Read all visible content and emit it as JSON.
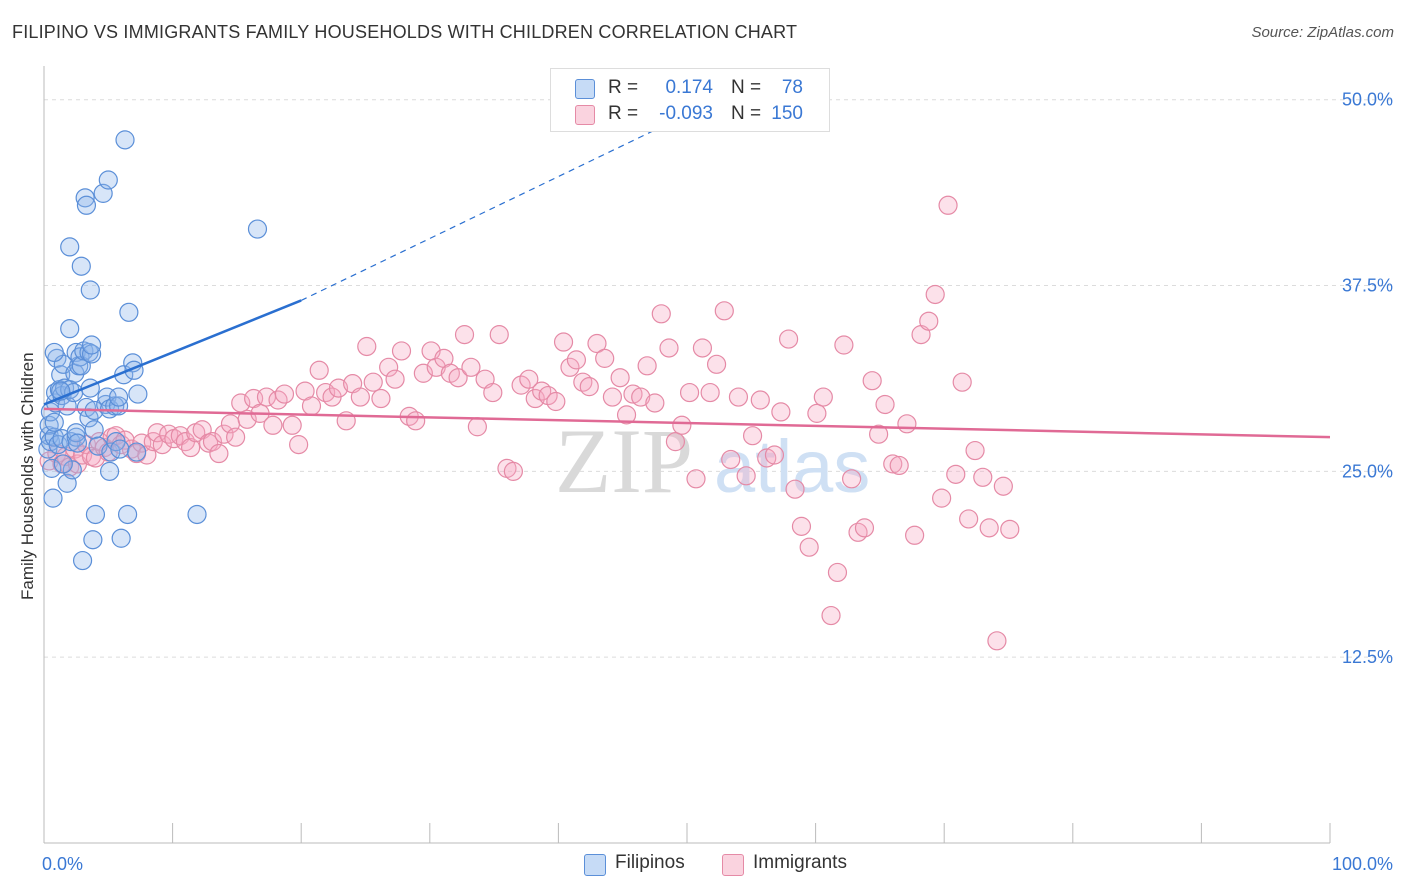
{
  "header": {
    "title": "FILIPINO VS IMMIGRANTS FAMILY HOUSEHOLDS WITH CHILDREN CORRELATION CHART",
    "source": "Source: ZipAtlas.com"
  },
  "watermark": {
    "zip": "ZIP",
    "atlas": "atlas"
  },
  "legend": {
    "rows": [
      {
        "r_label": "R =",
        "r_value": "0.174",
        "n_label": "N =",
        "n_value": "78",
        "color": "#8fb8ef",
        "border": "#5b8fd8"
      },
      {
        "r_label": "R =",
        "r_value": "-0.093",
        "n_label": "N =",
        "n_value": "150",
        "color": "#f5b8cb",
        "border": "#e58aa6"
      }
    ]
  },
  "bottom_legend": {
    "filipinos": "Filipinos",
    "immigrants": "Immigrants"
  },
  "chart_data": {
    "type": "scatter",
    "title": "FILIPINO VS IMMIGRANTS FAMILY HOUSEHOLDS WITH CHILDREN CORRELATION CHART",
    "xlabel": "",
    "ylabel": "Family Households with Children",
    "xlim": [
      0,
      100
    ],
    "ylim": [
      0,
      52
    ],
    "x_tick_labels": [
      "0.0%",
      "100.0%"
    ],
    "y_ticks": [
      12.5,
      25.0,
      37.5,
      50.0
    ],
    "y_tick_labels": [
      "12.5%",
      "25.0%",
      "37.5%",
      "50.0%"
    ],
    "grid": true,
    "colors": {
      "filipinos": "#5b8fd8",
      "immigrants": "#e58aa6",
      "filipinos_line": "#2a6fd0",
      "immigrants_line": "#e06a95",
      "tick_label": "#3a78d4"
    },
    "trend_lines": [
      {
        "name": "Filipinos",
        "x0": 0,
        "y0": 29.5,
        "x1": 20,
        "y1": 36.5,
        "dashed_to_x": 50,
        "dashed_to_y": 49.0
      },
      {
        "name": "Immigrants",
        "x0": 0,
        "y0": 29.2,
        "x1": 100,
        "y1": 27.3
      }
    ],
    "series": [
      {
        "name": "Filipinos",
        "points": [
          [
            0.3,
            26.5
          ],
          [
            0.4,
            27.4
          ],
          [
            0.4,
            28.1
          ],
          [
            0.5,
            29.0
          ],
          [
            0.5,
            27.0
          ],
          [
            0.6,
            25.2
          ],
          [
            0.7,
            23.2
          ],
          [
            0.8,
            27.3
          ],
          [
            0.8,
            28.3
          ],
          [
            0.9,
            29.6
          ],
          [
            0.9,
            30.3
          ],
          [
            1.0,
            32.6
          ],
          [
            1.1,
            26.8
          ],
          [
            1.2,
            30.5
          ],
          [
            1.3,
            31.5
          ],
          [
            1.4,
            30.1
          ],
          [
            1.4,
            27.2
          ],
          [
            1.5,
            32.2
          ],
          [
            1.6,
            30.6
          ],
          [
            1.8,
            24.2
          ],
          [
            1.8,
            29.4
          ],
          [
            2.0,
            30.5
          ],
          [
            2.0,
            34.6
          ],
          [
            2.0,
            40.1
          ],
          [
            2.1,
            27.0
          ],
          [
            2.2,
            25.1
          ],
          [
            2.3,
            30.3
          ],
          [
            2.4,
            31.6
          ],
          [
            2.5,
            27.3
          ],
          [
            2.5,
            27.6
          ],
          [
            2.5,
            33.0
          ],
          [
            2.6,
            26.9
          ],
          [
            2.7,
            32.1
          ],
          [
            2.8,
            32.7
          ],
          [
            2.9,
            38.8
          ],
          [
            2.9,
            32.1
          ],
          [
            3.0,
            19.0
          ],
          [
            3.1,
            33.1
          ],
          [
            3.2,
            43.4
          ],
          [
            3.3,
            42.9
          ],
          [
            3.3,
            29.3
          ],
          [
            3.5,
            28.6
          ],
          [
            3.5,
            33.0
          ],
          [
            3.6,
            37.2
          ],
          [
            3.6,
            30.6
          ],
          [
            3.7,
            32.9
          ],
          [
            3.7,
            33.5
          ],
          [
            3.8,
            20.4
          ],
          [
            3.9,
            29.1
          ],
          [
            3.9,
            27.8
          ],
          [
            4.0,
            22.1
          ],
          [
            4.2,
            26.7
          ],
          [
            4.6,
            43.7
          ],
          [
            4.8,
            29.5
          ],
          [
            4.9,
            30.0
          ],
          [
            5.0,
            44.6
          ],
          [
            5.1,
            25.0
          ],
          [
            5.1,
            29.2
          ],
          [
            5.2,
            26.3
          ],
          [
            5.5,
            29.4
          ],
          [
            5.6,
            27.0
          ],
          [
            5.8,
            29.4
          ],
          [
            5.8,
            30.0
          ],
          [
            5.9,
            26.5
          ],
          [
            6.0,
            20.5
          ],
          [
            6.2,
            31.5
          ],
          [
            6.3,
            47.3
          ],
          [
            6.5,
            22.1
          ],
          [
            6.6,
            35.7
          ],
          [
            6.9,
            32.3
          ],
          [
            7.0,
            31.8
          ],
          [
            7.2,
            26.3
          ],
          [
            7.3,
            30.2
          ],
          [
            11.9,
            22.1
          ],
          [
            16.6,
            41.3
          ],
          [
            1.3,
            30.4
          ],
          [
            0.8,
            33.0
          ],
          [
            1.5,
            25.5
          ]
        ]
      },
      {
        "name": "Immigrants",
        "points": [
          [
            0.4,
            25.7
          ],
          [
            1.0,
            26.2
          ],
          [
            1.4,
            25.5
          ],
          [
            1.7,
            26.0
          ],
          [
            2.0,
            25.3
          ],
          [
            2.4,
            26.5
          ],
          [
            2.6,
            25.5
          ],
          [
            3.0,
            26.1
          ],
          [
            3.3,
            26.8
          ],
          [
            3.7,
            26.0
          ],
          [
            4.0,
            25.9
          ],
          [
            4.3,
            27.0
          ],
          [
            4.7,
            26.6
          ],
          [
            5.0,
            26.3
          ],
          [
            5.3,
            27.3
          ],
          [
            5.6,
            27.4
          ],
          [
            6.0,
            26.8
          ],
          [
            6.3,
            27.1
          ],
          [
            6.8,
            26.5
          ],
          [
            7.2,
            26.2
          ],
          [
            7.6,
            26.9
          ],
          [
            8.0,
            26.1
          ],
          [
            8.5,
            27.0
          ],
          [
            8.8,
            27.6
          ],
          [
            9.2,
            26.8
          ],
          [
            9.7,
            27.5
          ],
          [
            10.1,
            27.2
          ],
          [
            10.6,
            27.4
          ],
          [
            11.0,
            27.0
          ],
          [
            11.4,
            26.6
          ],
          [
            11.8,
            27.6
          ],
          [
            12.3,
            27.8
          ],
          [
            12.8,
            26.9
          ],
          [
            13.1,
            27.0
          ],
          [
            13.6,
            26.2
          ],
          [
            14.0,
            27.5
          ],
          [
            14.5,
            28.2
          ],
          [
            14.9,
            27.3
          ],
          [
            15.3,
            29.6
          ],
          [
            15.8,
            28.5
          ],
          [
            16.3,
            29.9
          ],
          [
            16.8,
            28.9
          ],
          [
            17.3,
            30.0
          ],
          [
            17.8,
            28.1
          ],
          [
            18.2,
            29.8
          ],
          [
            18.7,
            30.2
          ],
          [
            19.3,
            28.1
          ],
          [
            19.8,
            26.8
          ],
          [
            20.3,
            30.4
          ],
          [
            20.8,
            29.4
          ],
          [
            21.4,
            31.8
          ],
          [
            21.9,
            30.3
          ],
          [
            22.4,
            30.0
          ],
          [
            22.9,
            30.6
          ],
          [
            23.5,
            28.4
          ],
          [
            24.0,
            30.9
          ],
          [
            24.6,
            30.0
          ],
          [
            25.1,
            33.4
          ],
          [
            25.6,
            31.0
          ],
          [
            26.2,
            29.9
          ],
          [
            26.8,
            32.0
          ],
          [
            27.3,
            31.2
          ],
          [
            27.8,
            33.1
          ],
          [
            28.4,
            28.7
          ],
          [
            28.9,
            28.4
          ],
          [
            29.5,
            31.6
          ],
          [
            30.1,
            33.1
          ],
          [
            30.5,
            32.0
          ],
          [
            31.1,
            32.6
          ],
          [
            31.6,
            31.6
          ],
          [
            32.2,
            31.3
          ],
          [
            32.7,
            34.2
          ],
          [
            33.2,
            32.0
          ],
          [
            33.7,
            28.0
          ],
          [
            34.3,
            31.2
          ],
          [
            34.9,
            30.3
          ],
          [
            35.4,
            34.2
          ],
          [
            36.0,
            25.2
          ],
          [
            36.5,
            25.0
          ],
          [
            37.1,
            30.8
          ],
          [
            37.7,
            31.2
          ],
          [
            38.2,
            29.9
          ],
          [
            38.7,
            30.4
          ],
          [
            39.2,
            30.1
          ],
          [
            39.8,
            29.7
          ],
          [
            40.4,
            33.7
          ],
          [
            40.9,
            32.0
          ],
          [
            41.4,
            32.5
          ],
          [
            41.9,
            31.0
          ],
          [
            42.4,
            30.7
          ],
          [
            43.0,
            33.6
          ],
          [
            43.6,
            32.6
          ],
          [
            44.2,
            30.0
          ],
          [
            44.8,
            31.3
          ],
          [
            45.3,
            28.8
          ],
          [
            45.8,
            30.2
          ],
          [
            46.4,
            30.0
          ],
          [
            46.9,
            32.1
          ],
          [
            47.5,
            29.6
          ],
          [
            48.0,
            35.6
          ],
          [
            48.6,
            33.3
          ],
          [
            49.1,
            27.0
          ],
          [
            49.6,
            28.1
          ],
          [
            50.2,
            30.3
          ],
          [
            50.7,
            24.5
          ],
          [
            51.2,
            33.3
          ],
          [
            51.8,
            30.3
          ],
          [
            52.3,
            32.2
          ],
          [
            52.9,
            35.8
          ],
          [
            53.4,
            25.8
          ],
          [
            54.0,
            30.0
          ],
          [
            54.6,
            24.7
          ],
          [
            55.1,
            27.4
          ],
          [
            55.7,
            29.8
          ],
          [
            56.2,
            25.9
          ],
          [
            56.8,
            26.1
          ],
          [
            57.3,
            29.0
          ],
          [
            57.9,
            33.9
          ],
          [
            58.4,
            23.8
          ],
          [
            58.9,
            21.3
          ],
          [
            59.5,
            19.9
          ],
          [
            60.1,
            28.9
          ],
          [
            60.6,
            30.0
          ],
          [
            61.2,
            15.3
          ],
          [
            61.7,
            18.2
          ],
          [
            62.2,
            33.5
          ],
          [
            62.8,
            24.5
          ],
          [
            63.3,
            20.9
          ],
          [
            63.8,
            21.2
          ],
          [
            64.4,
            31.1
          ],
          [
            64.9,
            27.5
          ],
          [
            65.4,
            29.5
          ],
          [
            66.0,
            25.5
          ],
          [
            66.5,
            25.4
          ],
          [
            67.1,
            28.2
          ],
          [
            67.7,
            20.7
          ],
          [
            68.2,
            34.2
          ],
          [
            68.8,
            35.1
          ],
          [
            69.3,
            36.9
          ],
          [
            69.8,
            23.2
          ],
          [
            70.3,
            42.9
          ],
          [
            70.9,
            24.8
          ],
          [
            71.4,
            31.0
          ],
          [
            71.9,
            21.8
          ],
          [
            72.4,
            26.4
          ],
          [
            73.0,
            24.6
          ],
          [
            73.5,
            21.2
          ],
          [
            74.1,
            13.6
          ],
          [
            74.6,
            24.0
          ],
          [
            75.1,
            21.1
          ]
        ]
      }
    ]
  }
}
